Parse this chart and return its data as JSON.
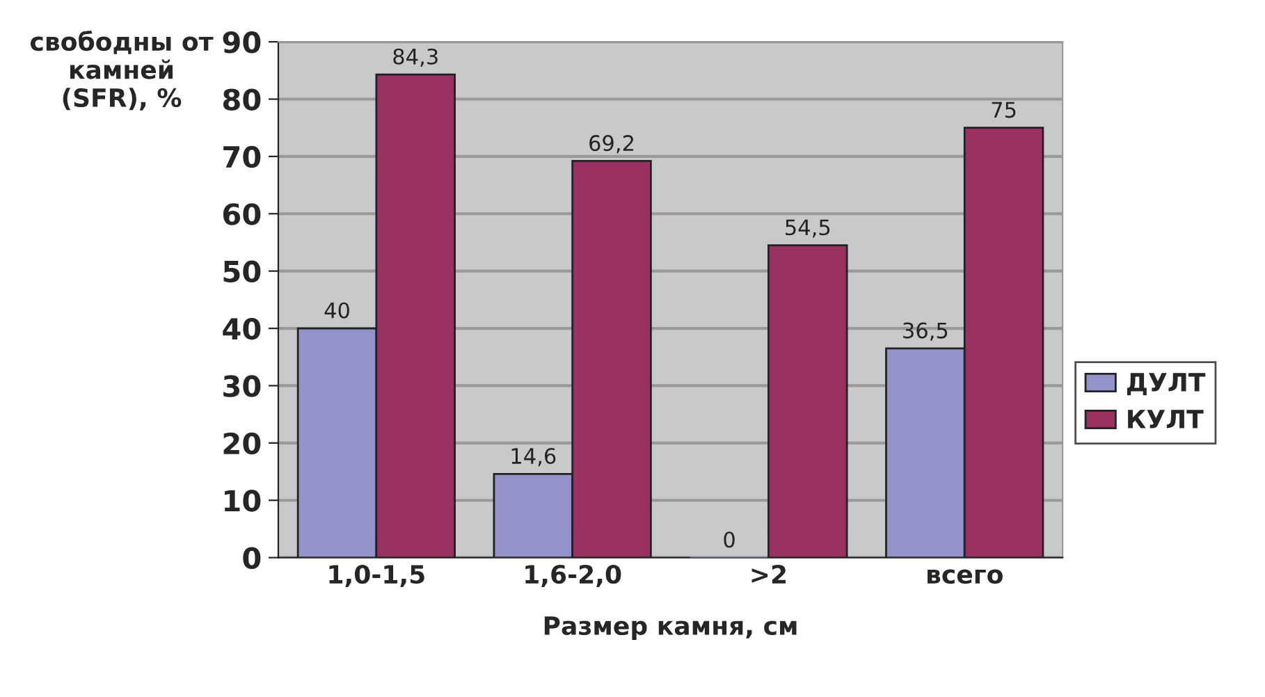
{
  "chart_data": {
    "type": "bar",
    "xlabel": "Размер камня, см",
    "ylabel": "свободны от\nкамней\n(SFR), %",
    "categories": [
      "1,0-1,5",
      "1,6-2,0",
      ">2",
      "всего"
    ],
    "series": [
      {
        "name": "ДУЛТ",
        "color": "#9393c9",
        "values": [
          40,
          14.6,
          0,
          36.5
        ],
        "value_labels": [
          "40",
          "14,6",
          "0",
          "36,5"
        ]
      },
      {
        "name": "КУЛТ",
        "color": "#993163",
        "values": [
          84.3,
          69.2,
          54.5,
          75
        ],
        "value_labels": [
          "84,3",
          "69,2",
          "54,5",
          "75"
        ]
      }
    ],
    "ylim": [
      0,
      90
    ],
    "yticks": [
      0,
      10,
      20,
      30,
      40,
      50,
      60,
      70,
      80,
      90
    ],
    "grid": "y",
    "legend": "right"
  }
}
